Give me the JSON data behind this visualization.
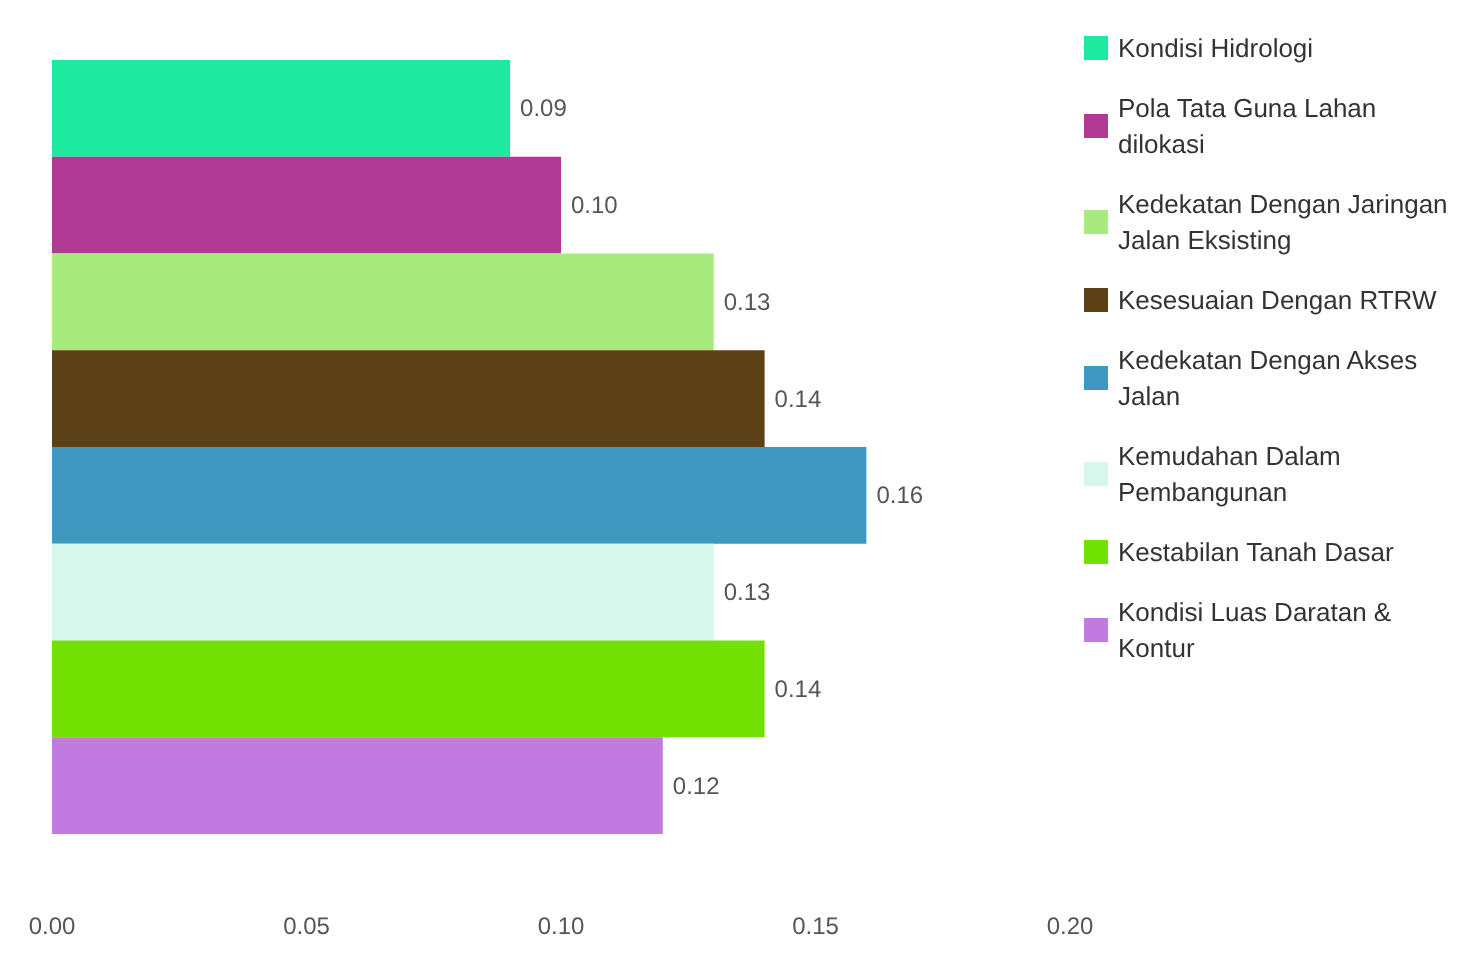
{
  "chart_data": {
    "type": "bar",
    "orientation": "horizontal",
    "categories": [
      null
    ],
    "series": [
      {
        "name": "Kondisi Hidrologi",
        "color": "#1de9a0",
        "values": [
          0.09
        ],
        "value_labels": [
          "0.09"
        ]
      },
      {
        "name": "Pola Tata Guna Lahan dilokasi",
        "color": "#b03a93",
        "values": [
          0.1
        ],
        "value_labels": [
          "0.10"
        ]
      },
      {
        "name": "Kedekatan Dengan Jaringan Jalan Eksisting",
        "color": "#a9ea7f",
        "values": [
          0.13
        ],
        "value_labels": [
          "0.13"
        ]
      },
      {
        "name": "Kesesuaian Dengan RTRW",
        "color": "#5c4016",
        "values": [
          0.14
        ],
        "value_labels": [
          "0.14"
        ]
      },
      {
        "name": "Kedekatan Dengan Akses Jalan",
        "color": "#3e98c0",
        "values": [
          0.16
        ],
        "value_labels": [
          "0.16"
        ]
      },
      {
        "name": "Kemudahan Dalam Pembangunan",
        "color": "#d6f7ec",
        "values": [
          0.13
        ],
        "value_labels": [
          "0.13"
        ]
      },
      {
        "name": "Kestabilan Tanah Dasar",
        "color": "#72e000",
        "values": [
          0.14
        ],
        "value_labels": [
          "0.14"
        ]
      },
      {
        "name": "Kondisi Luas Daratan & Kontur",
        "color": "#c07ae0",
        "values": [
          0.12
        ],
        "value_labels": [
          "0.12"
        ]
      }
    ],
    "xlim": [
      0,
      0.2
    ],
    "xticks": [
      {
        "value": 0,
        "label": "0.00"
      },
      {
        "value": 0.05,
        "label": "0.05"
      },
      {
        "value": 0.1,
        "label": "0.10"
      },
      {
        "value": 0.15,
        "label": "0.15"
      },
      {
        "value": 0.2,
        "label": "0.20"
      }
    ],
    "grid": false,
    "legend": "right"
  }
}
